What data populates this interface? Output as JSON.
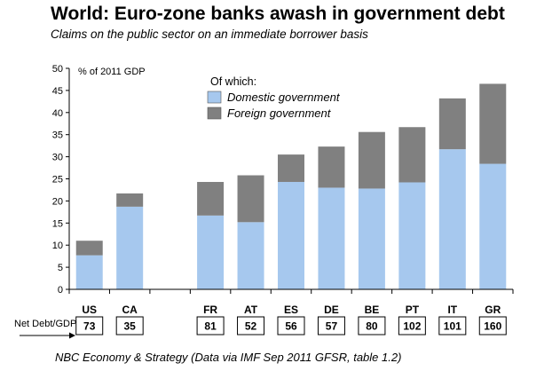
{
  "title": "World: Euro-zone banks awash in government debt",
  "subtitle": "Claims on the public sector on an immediate borrower basis",
  "source": "NBC Economy & Strategy (Data via IMF Sep 2011 GFSR, table 1.2)",
  "colors": {
    "domestic": "#a6c8ee",
    "foreign": "#808080"
  },
  "chart_data": {
    "type": "bar",
    "stacked": true,
    "unit_label": "% of 2011 GDP",
    "ylim": [
      0,
      50
    ],
    "yticks": [
      "0",
      "5",
      "10",
      "15",
      "20",
      "25",
      "30",
      "35",
      "40",
      "45",
      "50"
    ],
    "categories": [
      "US",
      "CA",
      "",
      "FR",
      "AT",
      "ES",
      "DE",
      "BE",
      "PT",
      "IT",
      "GR"
    ],
    "legend_title": "Of which:",
    "series": [
      {
        "name": "Domestic government",
        "values": [
          7.7,
          18.7,
          null,
          16.7,
          15.2,
          24.3,
          23.0,
          22.8,
          24.2,
          31.7,
          28.4
        ]
      },
      {
        "name": "Foreign government",
        "values": [
          3.3,
          3.0,
          null,
          7.6,
          10.6,
          6.2,
          9.3,
          12.8,
          12.5,
          11.5,
          18.1
        ]
      }
    ],
    "net_debt_label": "Net Debt/GDP",
    "net_debt": [
      "73",
      "35",
      "",
      "81",
      "52",
      "56",
      "57",
      "80",
      "102",
      "101",
      "160"
    ]
  }
}
